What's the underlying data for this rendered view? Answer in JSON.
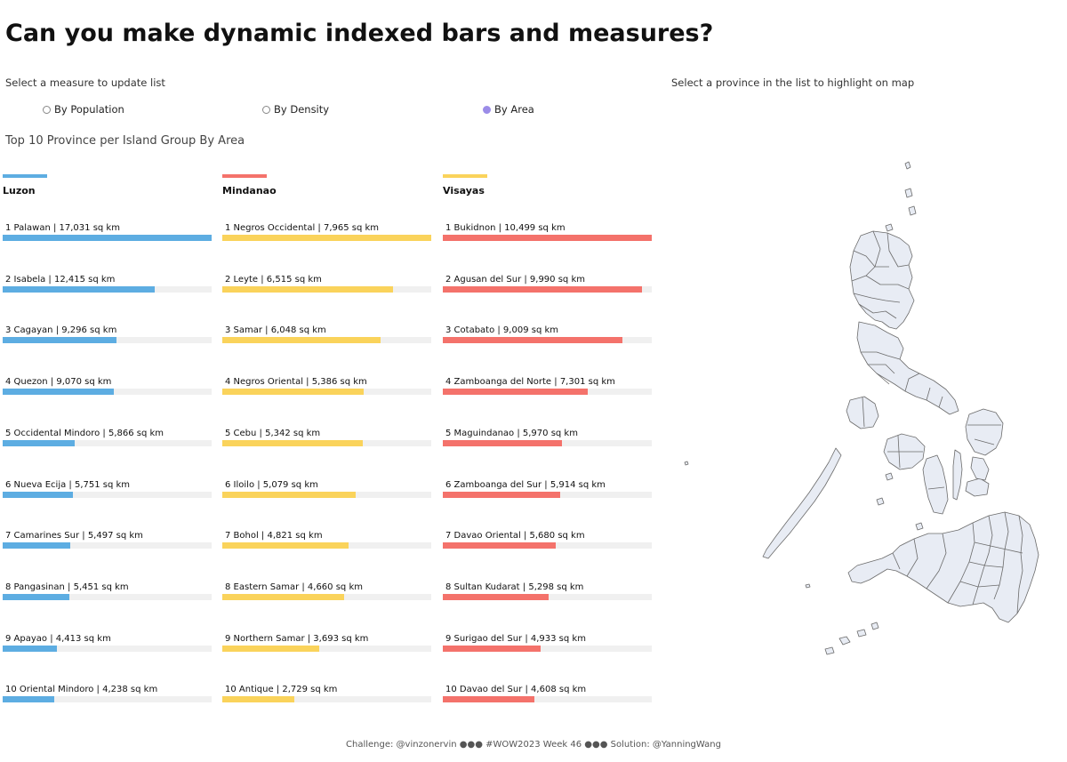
{
  "title": "Can you make dynamic indexed bars and measures?",
  "measure_prompt": "Select a measure to update list",
  "map_prompt": "Select a province in the list to highlight on map",
  "measures": [
    {
      "label": "By Population",
      "selected": false
    },
    {
      "label": "By Density",
      "selected": false
    },
    {
      "label": "By Area",
      "selected": true
    }
  ],
  "subtitle": "Top 10 Province per Island Group By Area",
  "colors": {
    "luzon": "#5dade2",
    "mindanao": "#f4726b",
    "visayas": "#fad35b",
    "radio_selected": "#9b8ce8"
  },
  "columns": [
    {
      "name": "Luzon",
      "accent": "#5dade2",
      "items": [
        {
          "label": "1 Palawan | 17,031 sq km",
          "value": 17031,
          "color": "#5dade2"
        },
        {
          "label": "2 Isabela | 12,415 sq km",
          "value": 12415,
          "color": "#5dade2"
        },
        {
          "label": "3 Cagayan | 9,296 sq km",
          "value": 9296,
          "color": "#5dade2"
        },
        {
          "label": "4 Quezon | 9,070 sq km",
          "value": 9070,
          "color": "#5dade2"
        },
        {
          "label": "5 Occidental Mindoro | 5,866 sq km",
          "value": 5866,
          "color": "#5dade2"
        },
        {
          "label": "6 Nueva Ecija | 5,751 sq km",
          "value": 5751,
          "color": "#5dade2"
        },
        {
          "label": "7 Camarines Sur | 5,497 sq km",
          "value": 5497,
          "color": "#5dade2"
        },
        {
          "label": "8 Pangasinan | 5,451 sq km",
          "value": 5451,
          "color": "#5dade2"
        },
        {
          "label": "9 Apayao | 4,413 sq km",
          "value": 4413,
          "color": "#5dade2"
        },
        {
          "label": "10 Oriental Mindoro | 4,238 sq km",
          "value": 4238,
          "color": "#5dade2"
        }
      ]
    },
    {
      "name": "Mindanao",
      "accent": "#f4726b",
      "items": [
        {
          "label": "1 Negros Occidental | 7,965 sq km",
          "value": 7965,
          "color": "#fad35b"
        },
        {
          "label": "2 Leyte | 6,515 sq km",
          "value": 6515,
          "color": "#fad35b"
        },
        {
          "label": "3 Samar | 6,048 sq km",
          "value": 6048,
          "color": "#fad35b"
        },
        {
          "label": "4 Negros Oriental | 5,386 sq km",
          "value": 5386,
          "color": "#fad35b"
        },
        {
          "label": "5 Cebu | 5,342 sq km",
          "value": 5342,
          "color": "#fad35b"
        },
        {
          "label": "6 Iloilo | 5,079 sq km",
          "value": 5079,
          "color": "#fad35b"
        },
        {
          "label": "7 Bohol | 4,821 sq km",
          "value": 4821,
          "color": "#fad35b"
        },
        {
          "label": "8 Eastern Samar | 4,660 sq km",
          "value": 4660,
          "color": "#fad35b"
        },
        {
          "label": "9 Northern Samar | 3,693 sq km",
          "value": 3693,
          "color": "#fad35b"
        },
        {
          "label": "10 Antique | 2,729 sq km",
          "value": 2729,
          "color": "#fad35b"
        }
      ]
    },
    {
      "name": "Visayas",
      "accent": "#fad35b",
      "items": [
        {
          "label": "1 Bukidnon | 10,499 sq km",
          "value": 10499,
          "color": "#f4726b"
        },
        {
          "label": "2 Agusan del Sur | 9,990 sq km",
          "value": 9990,
          "color": "#f4726b"
        },
        {
          "label": "3 Cotabato | 9,009 sq km",
          "value": 9009,
          "color": "#f4726b"
        },
        {
          "label": "4 Zamboanga del Norte | 7,301 sq km",
          "value": 7301,
          "color": "#f4726b"
        },
        {
          "label": "5 Maguindanao | 5,970 sq km",
          "value": 5970,
          "color": "#f4726b"
        },
        {
          "label": "6 Zamboanga del Sur | 5,914 sq km",
          "value": 5914,
          "color": "#f4726b"
        },
        {
          "label": "7 Davao Oriental | 5,680 sq km",
          "value": 5680,
          "color": "#f4726b"
        },
        {
          "label": "8 Sultan Kudarat | 5,298 sq km",
          "value": 5298,
          "color": "#f4726b"
        },
        {
          "label": "9 Surigao del Sur | 4,933 sq km",
          "value": 4933,
          "color": "#f4726b"
        },
        {
          "label": "10 Davao del Sur | 4,608 sq km",
          "value": 4608,
          "color": "#f4726b"
        }
      ]
    }
  ],
  "map": {
    "fill": "#e8ecf4",
    "stroke": "#6b6b6b"
  },
  "footer": "Challenge: @vinzonervin ●●● #WOW2023 Week 46 ●●● Solution: @YanningWang"
}
